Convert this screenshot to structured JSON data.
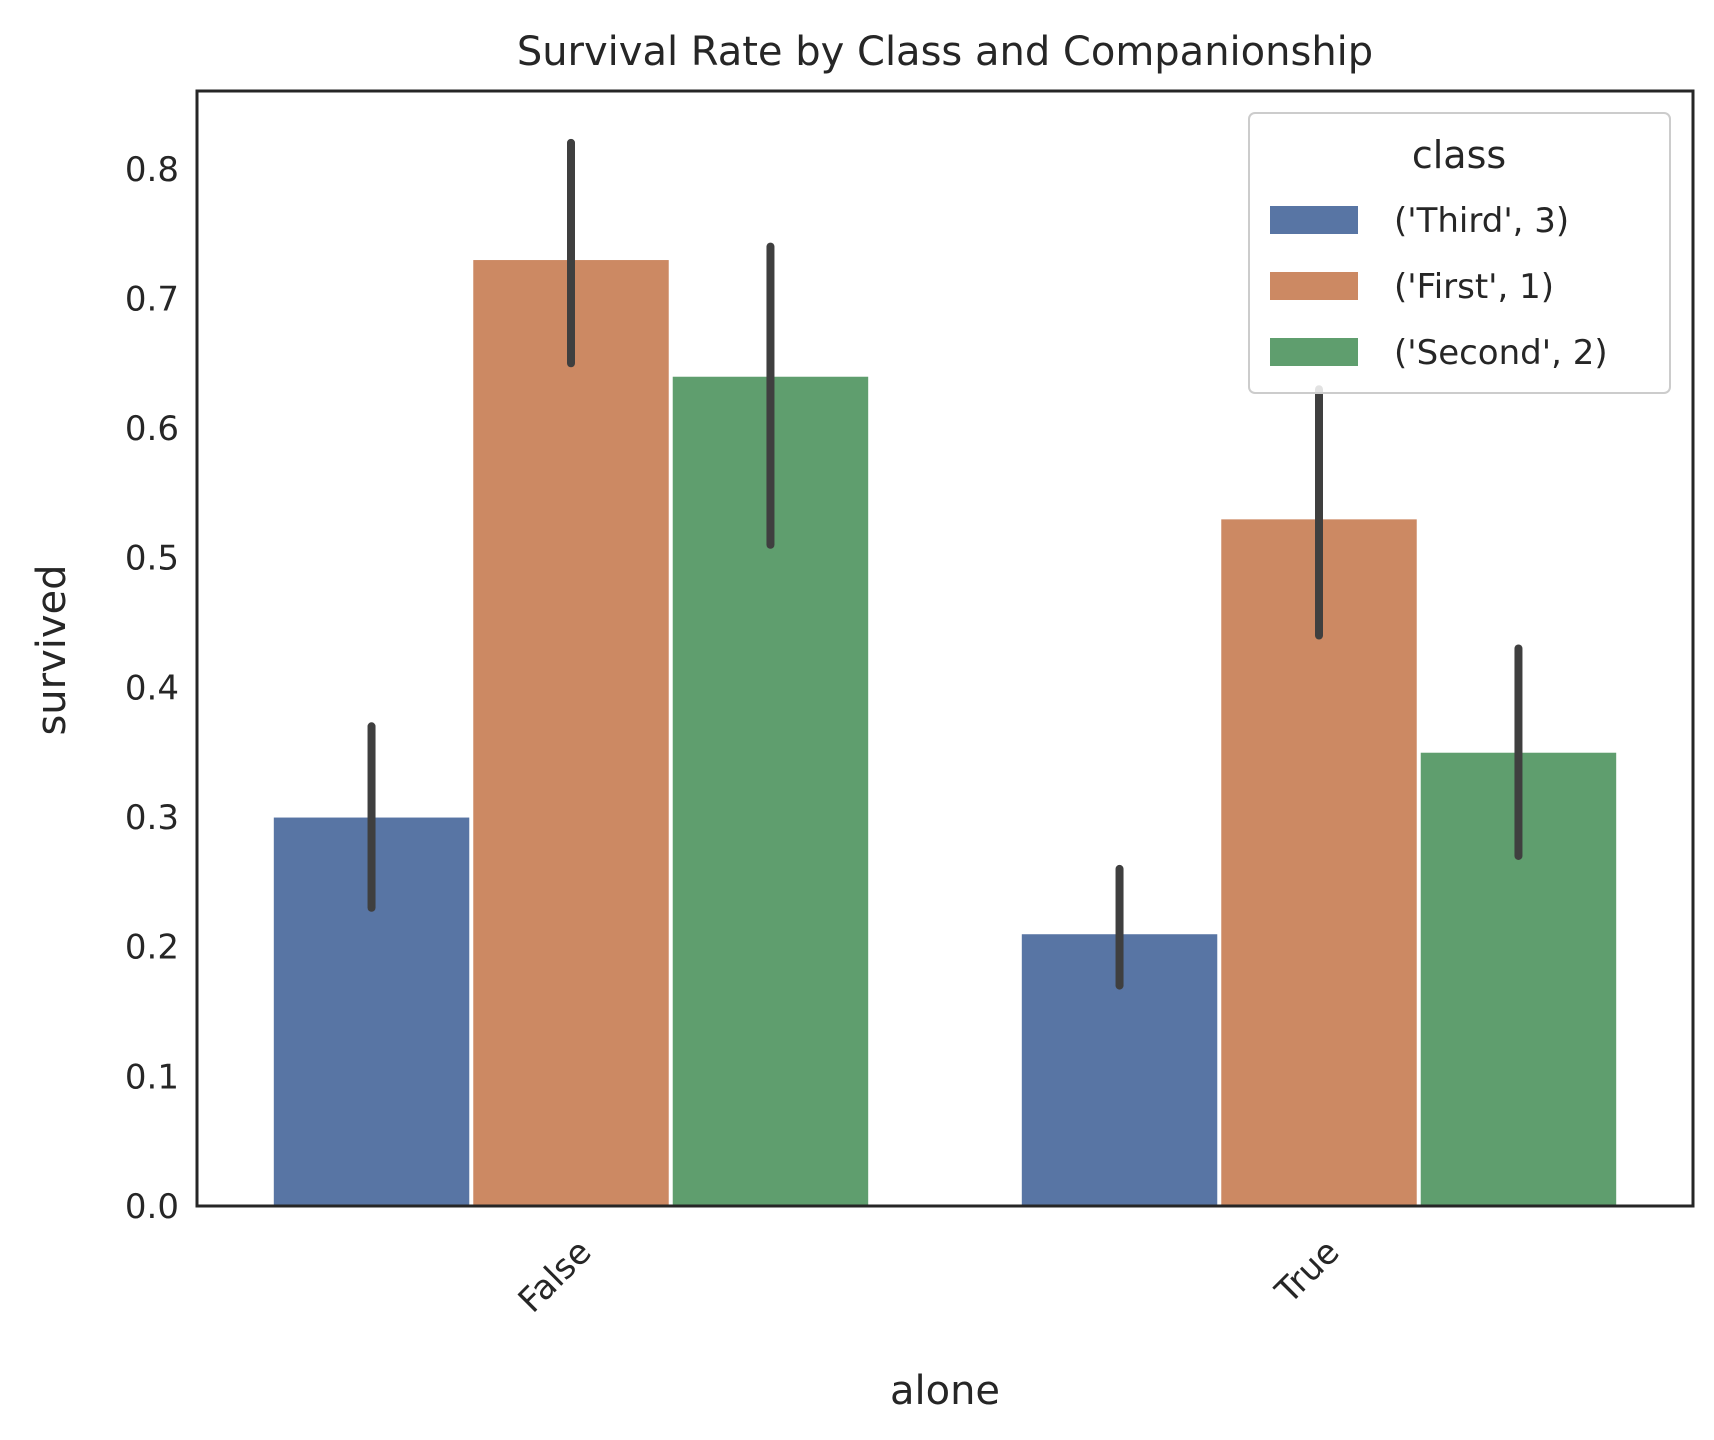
{
  "chart_data": {
    "type": "bar",
    "title": "Survival Rate by Class and Companionship",
    "xlabel": "alone",
    "ylabel": "survived",
    "categories": [
      "False",
      "True"
    ],
    "series": [
      {
        "name": "('Third', 3)",
        "color": "#5875a4",
        "values": [
          0.3,
          0.21
        ],
        "ci_low": [
          0.23,
          0.17
        ],
        "ci_high": [
          0.37,
          0.26
        ]
      },
      {
        "name": "('First', 1)",
        "color": "#cc8963",
        "values": [
          0.73,
          0.53
        ],
        "ci_low": [
          0.65,
          0.44
        ],
        "ci_high": [
          0.82,
          0.63
        ]
      },
      {
        "name": "('Second', 2)",
        "color": "#5f9e6e",
        "values": [
          0.64,
          0.35
        ],
        "ci_low": [
          0.51,
          0.27
        ],
        "ci_high": [
          0.74,
          0.43
        ]
      }
    ],
    "ylim": [
      0,
      0.86
    ],
    "yticks": [
      "0.0",
      "0.1",
      "0.2",
      "0.3",
      "0.4",
      "0.5",
      "0.6",
      "0.7",
      "0.8"
    ],
    "legend": {
      "title": "class",
      "placement": "top-right"
    },
    "grid": false,
    "errorbar_color": "#3f3f3f"
  }
}
